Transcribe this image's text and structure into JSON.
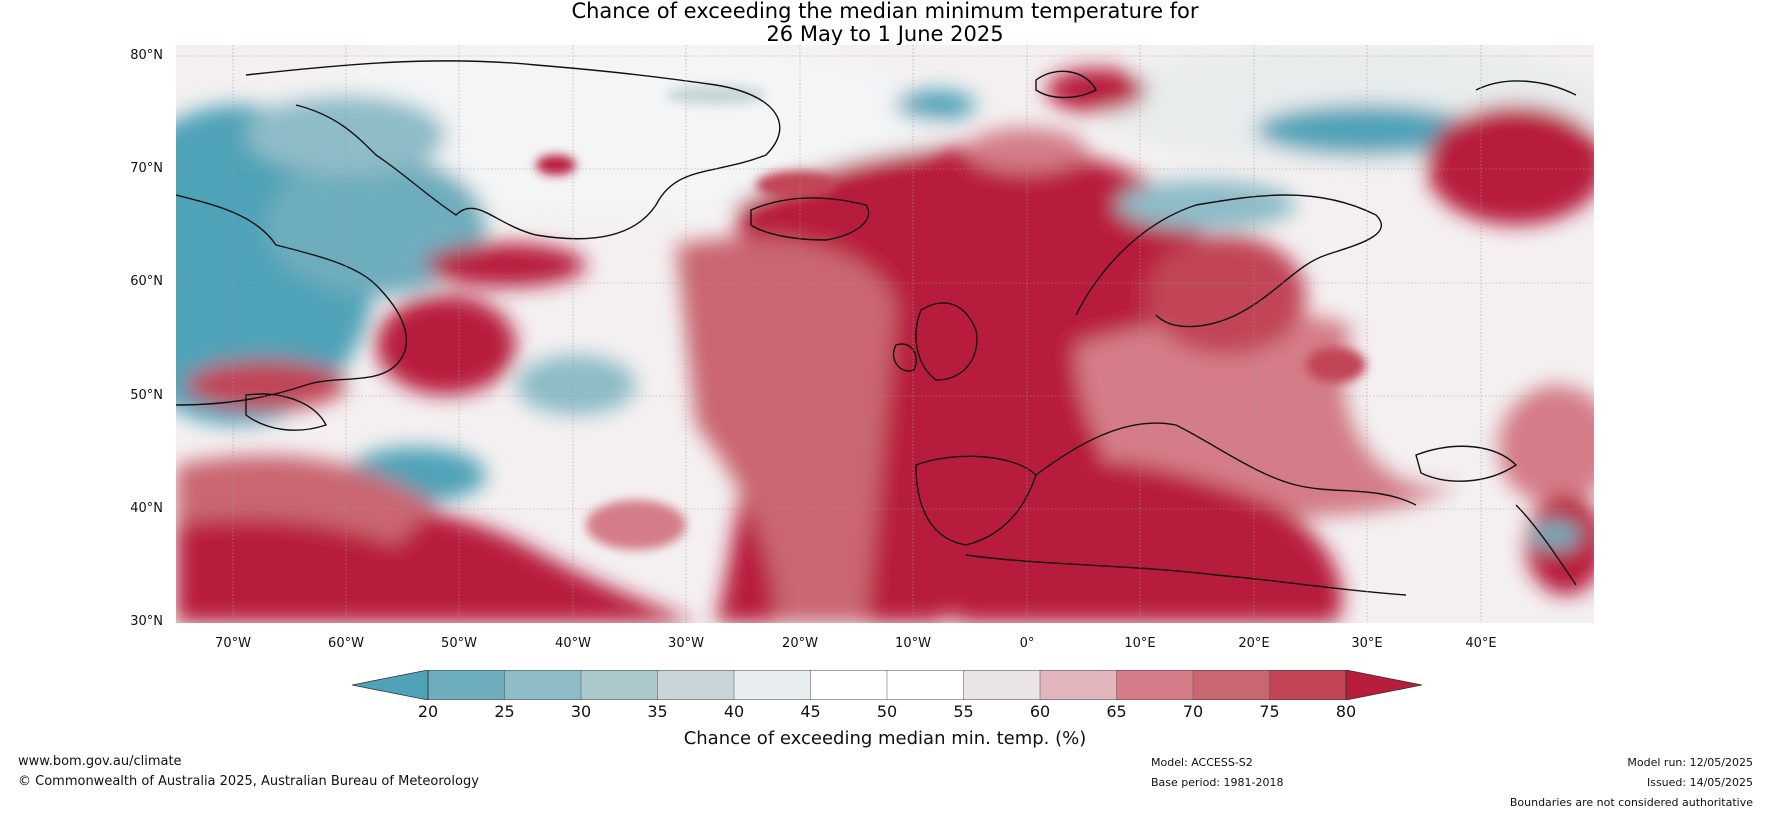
{
  "title": {
    "line1": "Chance of exceeding the median minimum temperature for",
    "line2": "26 May to 1 June 2025"
  },
  "map": {
    "region": "North Atlantic and Europe",
    "projection": "equirectangular",
    "lon_range": [
      -75,
      50
    ],
    "lat_range": [
      30,
      81
    ],
    "gridlines": true,
    "lat_labels": [
      "80°N",
      "70°N",
      "60°N",
      "50°N",
      "40°N",
      "30°N"
    ],
    "lon_labels": [
      "70°W",
      "60°W",
      "50°W",
      "40°W",
      "30°W",
      "20°W",
      "10°W",
      "0°",
      "10°E",
      "20°E",
      "30°E",
      "40°E"
    ]
  },
  "colorbar": {
    "label": "Chance of exceeding median min. temp. (%)",
    "ticks": [
      "20",
      "25",
      "30",
      "35",
      "40",
      "45",
      "50",
      "55",
      "60",
      "65",
      "70",
      "75",
      "80"
    ],
    "colors": [
      "#4fa3b8",
      "#6eadbd",
      "#8ebcc7",
      "#abc8cd",
      "#c9d5d8",
      "#e8edf0",
      "#ffffff",
      "#ffffff",
      "#ebe4e5",
      "#e3b5bc",
      "#d47d88",
      "#c96672",
      "#c14556",
      "#b81d3c"
    ],
    "extend": "both"
  },
  "footer": {
    "website": "www.bom.gov.au/climate",
    "copyright": "© Commonwealth of Australia 2025, Australian Bureau of Meteorology",
    "model": "Model: ACCESS-S2",
    "base_period": "Base period: 1981-2018",
    "model_run": "Model run: 12/05/2025",
    "issued": "Issued: 14/05/2025",
    "disclaimer": "Boundaries are not considered authoritative"
  }
}
